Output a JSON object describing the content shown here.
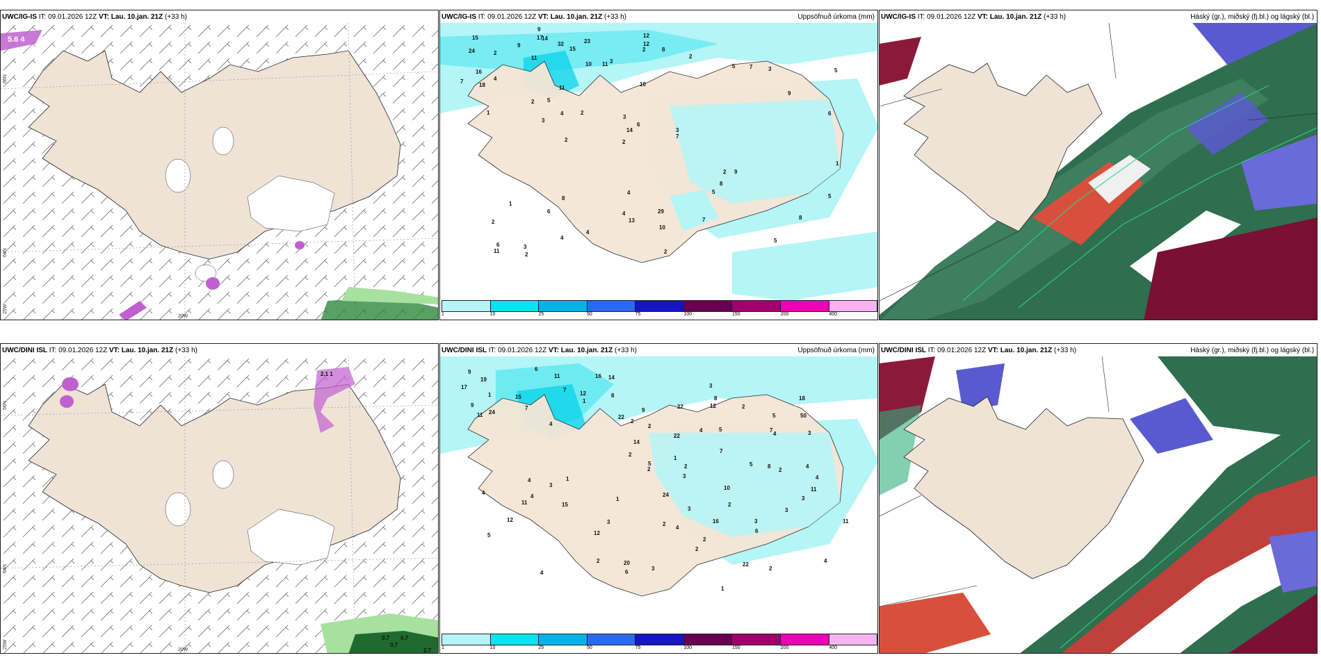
{
  "panels": {
    "top_left": {
      "model": "UWC/IG-IS",
      "it_label": "IT:",
      "it_value": "09.01.2026 12Z",
      "vt_label": "VT: Lau. 10.jan. 21Z",
      "lead": "(+33 h)",
      "right_title": ""
    },
    "top_mid": {
      "model": "UWC/IG-IS",
      "it_label": "IT:",
      "it_value": "09.01.2026 12Z",
      "vt_label": "VT: Lau. 10.jan. 21Z",
      "lead": "(+33 h)",
      "right_title": "Uppsöfnuð úrkoma (mm)"
    },
    "top_right": {
      "model": "UWC/IG-IS",
      "it_label": "IT:",
      "it_value": "09.01.2026 12Z",
      "vt_label": "VT: Lau. 10.jan. 21Z",
      "lead": "(+33 h)",
      "right_title": "Háský (gr.), miðský (fj.bl.) og lágský (bl.)"
    },
    "bot_left": {
      "model": "UWC/DINI ISL",
      "it_label": "IT:",
      "it_value": "09.01.2026 12Z",
      "vt_label": "VT: Lau. 10.jan. 21Z",
      "lead": "(+33 h)",
      "right_title": ""
    },
    "bot_mid": {
      "model": "UWC/DINI ISL",
      "it_label": "IT:",
      "it_value": "09.01.2026 12Z",
      "vt_label": "VT: Lau. 10.jan. 21Z",
      "lead": "(+33 h)",
      "right_title": "Uppsöfnuð úrkoma (mm)"
    },
    "bot_right": {
      "model": "UWC/DINI ISL",
      "it_label": "IT:",
      "it_value": "09.01.2026 12Z",
      "vt_label": "VT: Lau. 10.jan. 21Z",
      "lead": "(+33 h)",
      "right_title": "Háský (gr.), miðský (fj.bl.) og lágský (bl.)"
    }
  },
  "axes": {
    "lat_66": "66N",
    "lat_64": "64N",
    "lon_25": "25W",
    "lon_20": "20W",
    "lat_66_alt": "66N",
    "lat_65": "65N"
  },
  "precip_colorbar": {
    "colors": [
      "#b4f5f7",
      "#00e6f0",
      "#00b4e6",
      "#2a6af0",
      "#1414c8",
      "#6a0050",
      "#a0006e",
      "#f000b4",
      "#f5b4f0"
    ],
    "ticks": [
      "1",
      "10",
      "25",
      "50",
      "75",
      "100",
      "150",
      "200",
      "400"
    ]
  },
  "top_left_labels": {
    "warn": "5.6 4"
  },
  "bot_left_labels": {
    "warn1": "2.1 1",
    "val1": "0.7",
    "val2": "0.7",
    "val3": "0.7",
    "val4": "2.7"
  },
  "top_mid_values": [
    "10",
    "24",
    "12",
    "11",
    "23",
    "18",
    "17",
    "32",
    "16",
    "9",
    "7",
    "4",
    "14",
    "15",
    "11",
    "15",
    "9",
    "8",
    "10",
    "12",
    "2",
    "4",
    "14",
    "11",
    "5",
    "8",
    "5",
    "8",
    "9",
    "2",
    "2",
    "3",
    "5",
    "4",
    "6",
    "3",
    "6",
    "13",
    "7",
    "1",
    "9",
    "5",
    "8",
    "7",
    "6",
    "2",
    "11",
    "29",
    "3",
    "2",
    "2",
    "1",
    "5",
    "7",
    "3",
    "2",
    "3",
    "6",
    "5",
    "4",
    "4",
    "2",
    "4",
    "2",
    "2",
    "2",
    "1",
    "3",
    "10"
  ],
  "bot_mid_values": [
    "2",
    "1",
    "1",
    "9",
    "9",
    "19",
    "24",
    "15",
    "14",
    "11",
    "16",
    "22",
    "7",
    "6",
    "12",
    "9",
    "8",
    "7",
    "17",
    "11",
    "18",
    "22",
    "8",
    "11",
    "11",
    "4",
    "15",
    "24",
    "2",
    "50",
    "16",
    "11",
    "12",
    "5",
    "14",
    "3",
    "3",
    "22",
    "5",
    "1",
    "3",
    "4",
    "2",
    "3",
    "1",
    "3",
    "3",
    "8",
    "4",
    "2",
    "2",
    "4",
    "3",
    "2",
    "2",
    "4",
    "6",
    "5",
    "3",
    "5",
    "20",
    "7",
    "4",
    "22",
    "5",
    "12",
    "1",
    "3",
    "2",
    "4",
    "6",
    "3",
    "2",
    "4",
    "7",
    "4",
    "2",
    "2",
    "4",
    "12",
    "10",
    "2",
    "2",
    "4",
    "1"
  ]
}
